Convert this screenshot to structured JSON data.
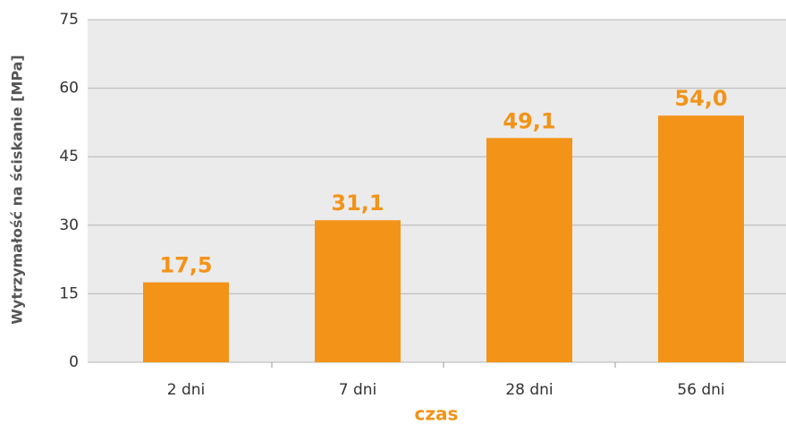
{
  "chart_data": {
    "type": "bar",
    "x_label": "czas",
    "y_label": "Wytrzymałość na ściskanie [MPa]",
    "categories": [
      "2 dni",
      "7 dni",
      "28 dni",
      "56 dni"
    ],
    "values": [
      17.5,
      31.1,
      49.1,
      54.0
    ],
    "value_labels": [
      "17,5",
      "31,1",
      "49,1",
      "54,0"
    ],
    "color": "#f39318",
    "ylim": [
      0,
      75
    ],
    "yticks": [
      0,
      15,
      30,
      45,
      60,
      75
    ],
    "grid": true
  }
}
